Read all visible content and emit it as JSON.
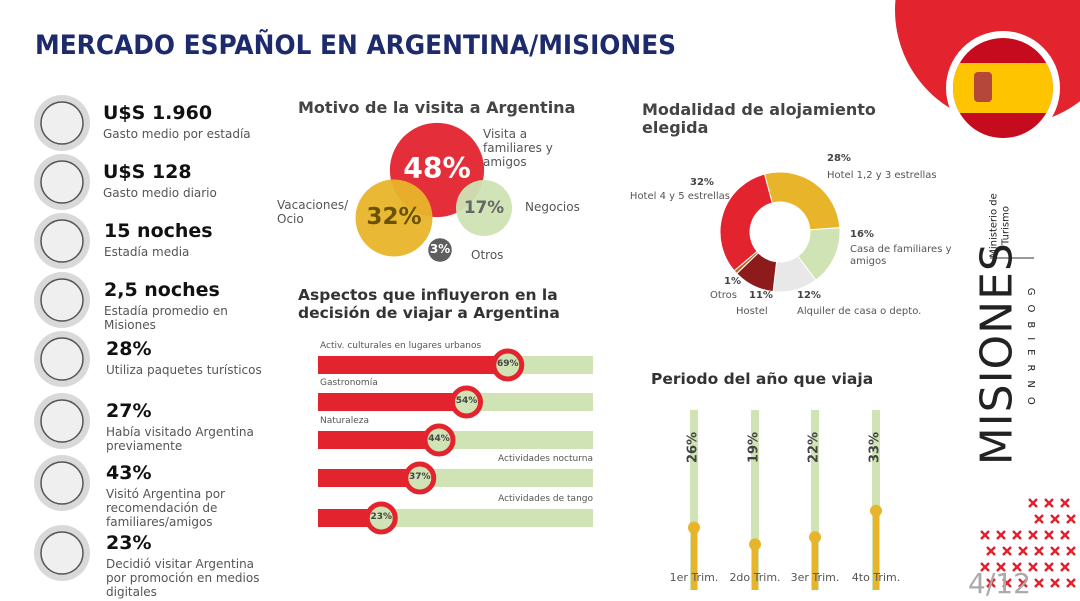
{
  "title": "MERCADO ESPAÑOL EN ARGENTINA/MISIONES",
  "stats": [
    {
      "value": "U$S 1.960",
      "label": "Gasto medio por estadía"
    },
    {
      "value": "U$S 128",
      "label": "Gasto medio diario"
    },
    {
      "value": "15 noches",
      "label": "Estadía media"
    },
    {
      "value": "2,5 noches",
      "label": "Estadía promedio en Misiones"
    },
    {
      "value": "28%",
      "label": "Utiliza paquetes turísticos"
    },
    {
      "value": "27%",
      "label": "Había visitado Argentina previamente"
    },
    {
      "value": "43%",
      "label": "Visitó Argentina por recomendación de familiares/amigos"
    },
    {
      "value": "23%",
      "label": "Decidió visitar Argentina por promoción en medios digitales"
    }
  ],
  "chart_data": [
    {
      "type": "bubble",
      "title": "Motivo de la visita a Argentina",
      "categories": [
        "Visita a familiares y amigos",
        "Vacaciones/ Ocio",
        "Negocios",
        "Otros"
      ],
      "values": [
        48,
        32,
        17,
        3
      ],
      "value_labels": [
        "48%",
        "32%",
        "17%",
        "3%"
      ],
      "colors": [
        "#e3232e",
        "#e8b52a",
        "#cfe3b4",
        "#555555"
      ]
    },
    {
      "type": "donut",
      "title": "Modalidad de alojamiento elegida",
      "categories": [
        "Hotel 1,2 y 3 estrellas",
        "Casa de familiares y amigos",
        "Alquiler de casa o depto.",
        "Hostel",
        "Otros",
        "Hotel 4 y 5 estrellas"
      ],
      "values": [
        28,
        16,
        12,
        11,
        1,
        32
      ],
      "value_labels": [
        "28%",
        "16%",
        "12%",
        "11%",
        "1%",
        "32%"
      ],
      "colors": [
        "#e8b52a",
        "#cfe3b4",
        "#e8e8e8",
        "#8e1b1b",
        "#b86a2a",
        "#e3232e"
      ]
    },
    {
      "type": "hbar",
      "title": "Aspectos que influyeron en la decisión de viajar a Argentina",
      "categories": [
        "Activ. culturales en lugares urbanos",
        "Gastronomía",
        "Naturaleza",
        "Actividades nocturna",
        "Actividades de tango"
      ],
      "values": [
        69,
        54,
        44,
        37,
        23
      ],
      "value_labels": [
        "69%",
        "54%",
        "44%",
        "37%",
        "23%"
      ],
      "xlim": [
        0,
        100
      ],
      "color": "#e3232e",
      "track_color": "#cfe3b4"
    },
    {
      "type": "slider",
      "title": "Periodo del año que viaja",
      "categories": [
        "1er Trim.",
        "2do Trim.",
        "3er Trim.",
        "4to Trim."
      ],
      "values": [
        26,
        19,
        22,
        33
      ],
      "value_labels": [
        "26%",
        "19%",
        "22%",
        "33%"
      ],
      "ylim": [
        0,
        75
      ],
      "color": "#e8b52a",
      "track_color": "#cfe3b4"
    }
  ],
  "branding": {
    "ministry": "Ministerio de Turismo",
    "logo": "MISIONES",
    "government": "GOBIERNO",
    "page": "4/12"
  }
}
